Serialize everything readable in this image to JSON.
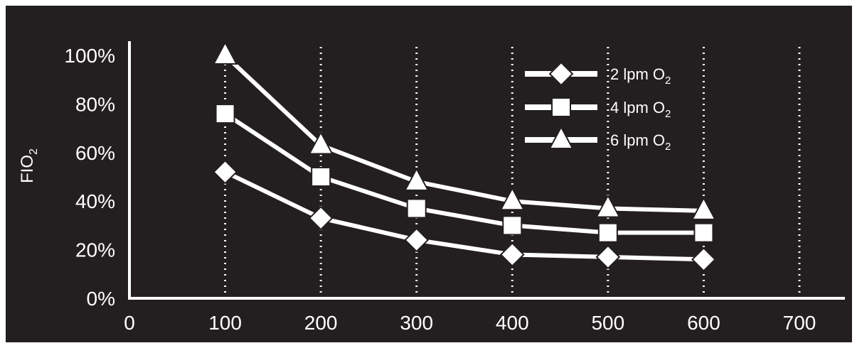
{
  "chart_data": {
    "type": "line",
    "ylabel_main": "FIO",
    "ylabel_sub": "2",
    "x": [
      100,
      200,
      300,
      400,
      500,
      600
    ],
    "xticks": [
      "0",
      "100",
      "200",
      "300",
      "400",
      "500",
      "600",
      "700"
    ],
    "xtick_values": [
      0,
      100,
      200,
      300,
      400,
      500,
      600,
      700
    ],
    "yticks": [
      "0%",
      "20%",
      "40%",
      "60%",
      "80%",
      "100%"
    ],
    "ytick_values": [
      0,
      20,
      40,
      60,
      80,
      100
    ],
    "xlim": [
      0,
      700
    ],
    "ylim": [
      0,
      100
    ],
    "vertical_gridlines_dotted": [
      100,
      200,
      300,
      400,
      500,
      600,
      700
    ],
    "legend_position": "top-right",
    "series": [
      {
        "name_main": "2 lpm O",
        "name_sub": "2",
        "marker": "diamond",
        "values": [
          52,
          33,
          24,
          18,
          17,
          16
        ]
      },
      {
        "name_main": "4 lpm O",
        "name_sub": "2",
        "marker": "square",
        "values": [
          76,
          50,
          37,
          30,
          27,
          27
        ]
      },
      {
        "name_main": "6 lpm O",
        "name_sub": "2",
        "marker": "triangle",
        "values": [
          100,
          63,
          48,
          40,
          37,
          36
        ]
      }
    ],
    "colors": {
      "background": "#231f20",
      "foreground": "#ffffff"
    }
  }
}
